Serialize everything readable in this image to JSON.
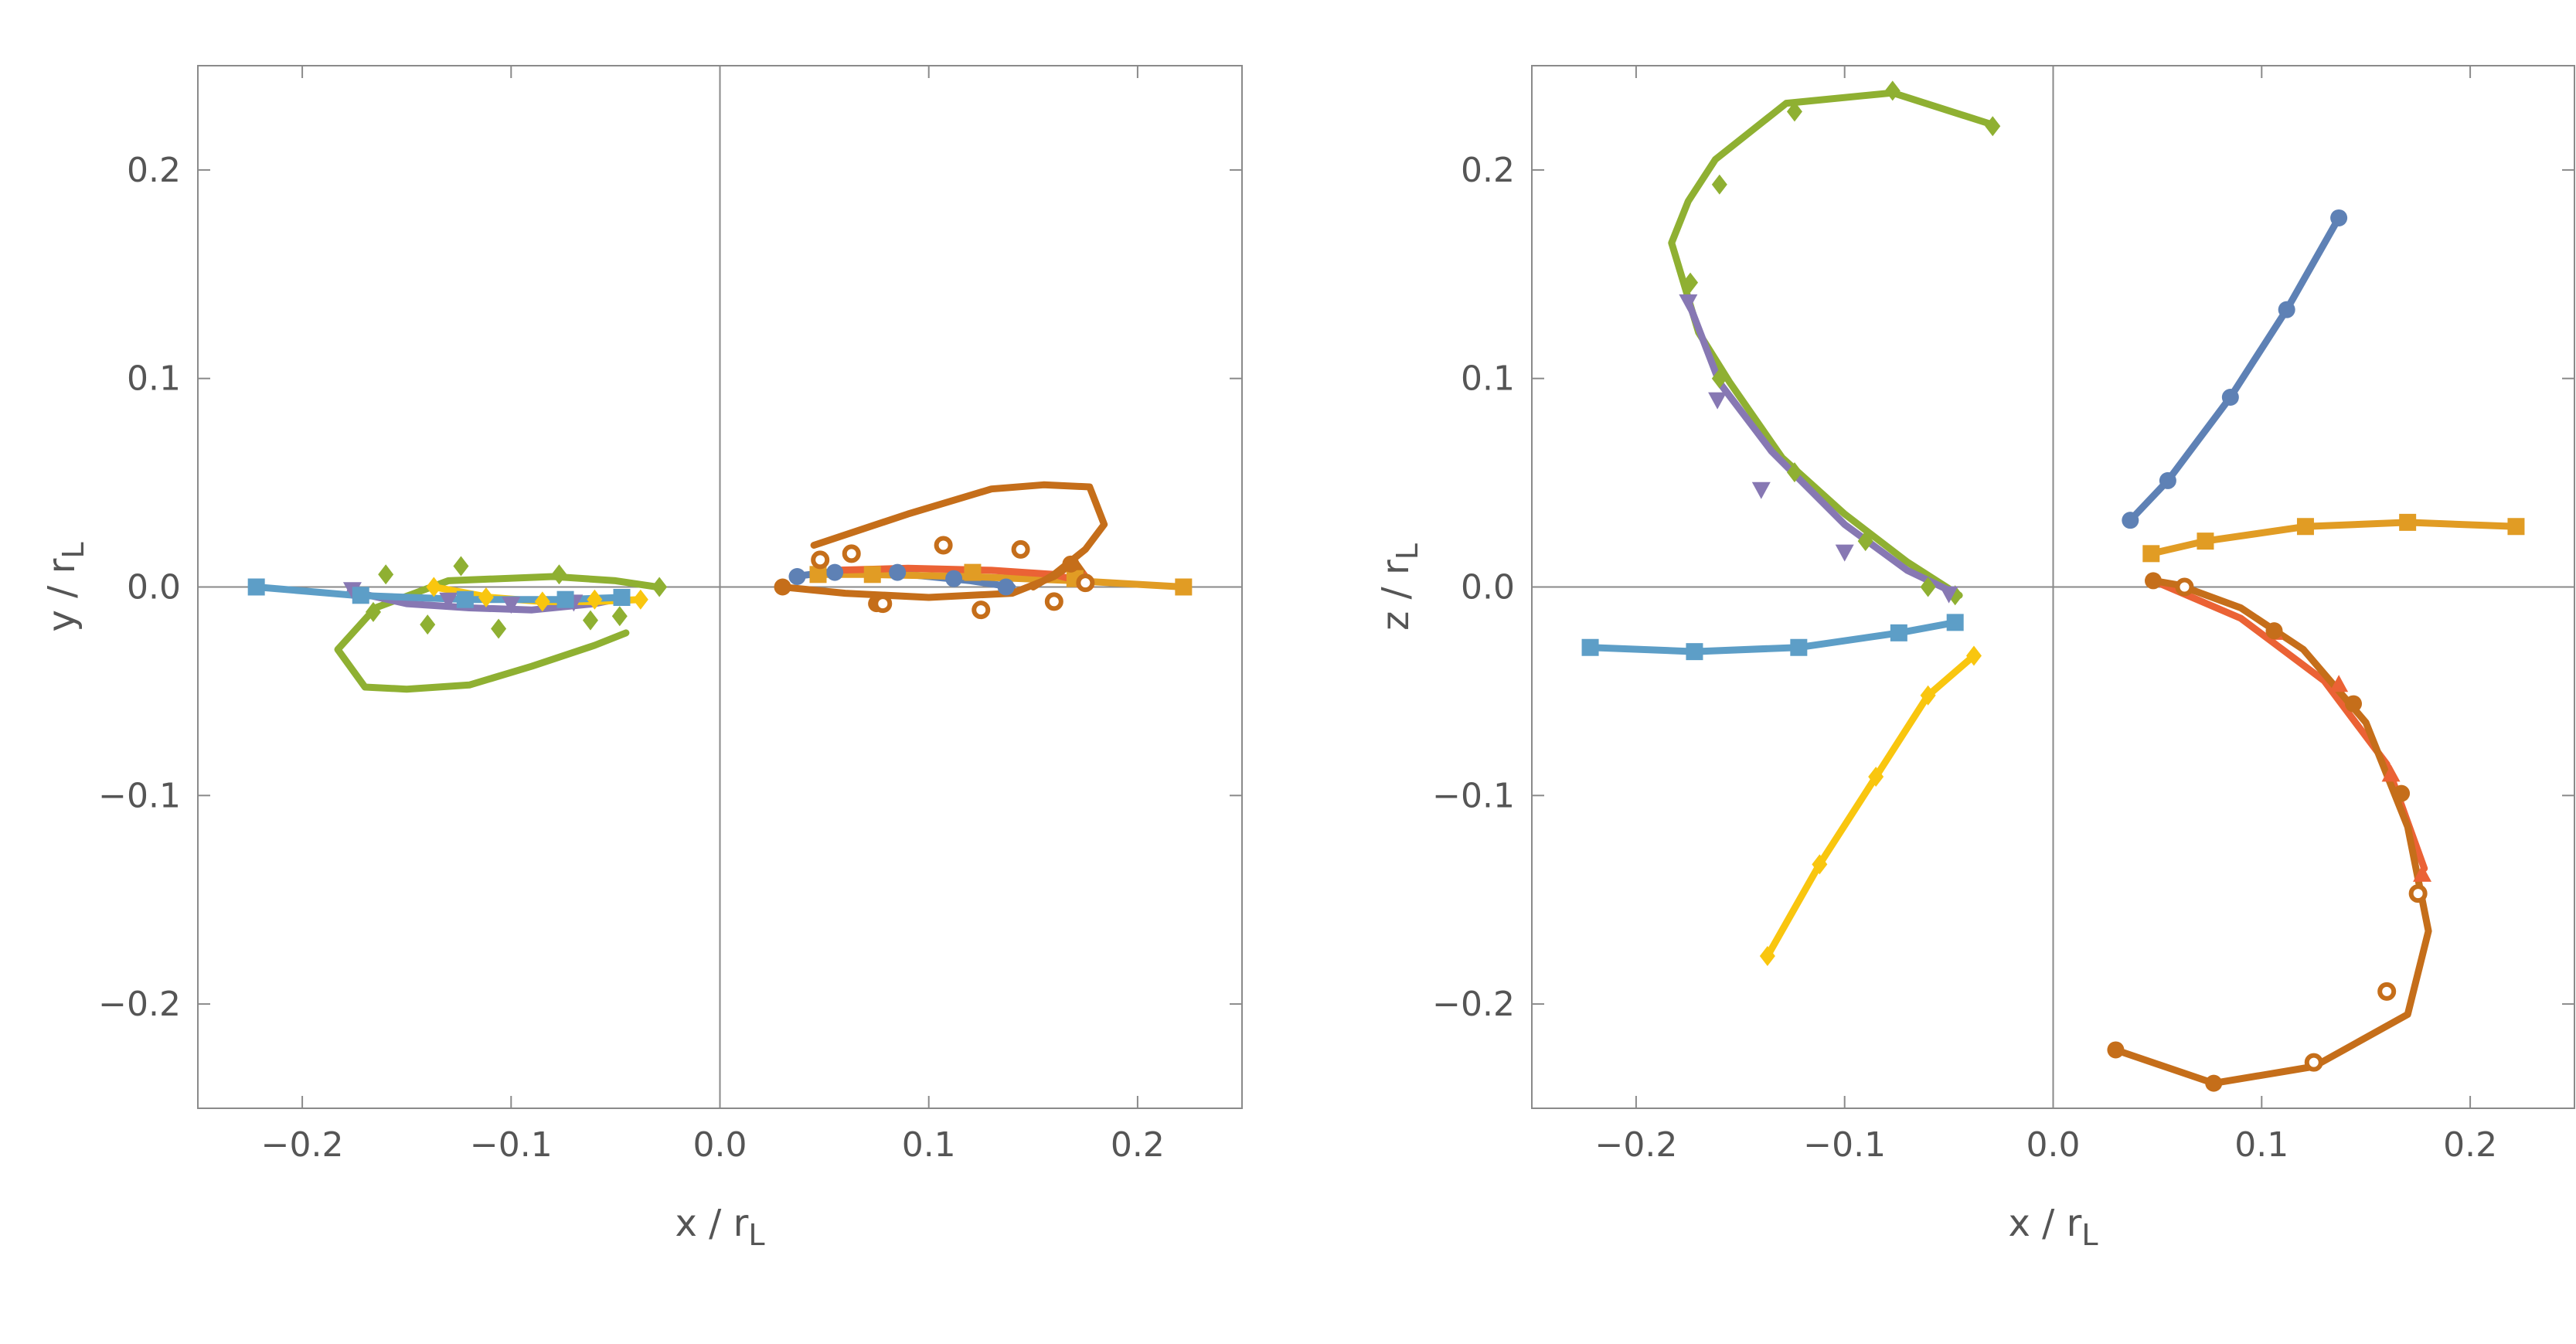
{
  "chart_data": [
    {
      "type": "line",
      "xlabel": "x / r",
      "xlabel_sub": "L",
      "ylabel": "y / r",
      "ylabel_sub": "L",
      "xlim": [
        -0.25,
        0.25
      ],
      "ylim": [
        -0.25,
        0.25
      ],
      "xticks": [
        -0.2,
        -0.1,
        0.0,
        0.1,
        0.2
      ],
      "yticks": [
        -0.2,
        -0.1,
        0.0,
        0.1,
        0.2
      ],
      "xtick_labels": [
        "−0.2",
        "−0.1",
        "0.0",
        "0.1",
        "0.2"
      ],
      "ytick_labels": [
        "−0.2",
        "−0.1",
        "0.0",
        "0.1",
        "0.2"
      ],
      "frame": true,
      "zero_lines": true,
      "series": [
        {
          "color": "#5E81B5",
          "marker": "circle",
          "line": [
            [
              0.035,
              0.005
            ],
            [
              0.06,
              0.008
            ],
            [
              0.09,
              0.006
            ],
            [
              0.12,
              0.003
            ],
            [
              0.14,
              0.0
            ]
          ],
          "points": [
            [
              0.037,
              0.005
            ],
            [
              0.055,
              0.007
            ],
            [
              0.085,
              0.007
            ],
            [
              0.112,
              0.004
            ],
            [
              0.137,
              0.0
            ]
          ]
        },
        {
          "color": "#E19C24",
          "marker": "square",
          "line": [
            [
              0.047,
              0.006
            ],
            [
              0.07,
              0.006
            ],
            [
              0.12,
              0.005
            ],
            [
              0.17,
              0.003
            ],
            [
              0.222,
              0.0
            ]
          ],
          "points": [
            [
              0.047,
              0.006
            ],
            [
              0.073,
              0.006
            ],
            [
              0.121,
              0.007
            ],
            [
              0.17,
              0.004
            ],
            [
              0.222,
              0.0
            ]
          ]
        },
        {
          "color": "#8FB032",
          "marker": "diamond",
          "line": [
            [
              -0.03,
              0.0
            ],
            [
              -0.05,
              0.003
            ],
            [
              -0.08,
              0.005
            ],
            [
              -0.13,
              0.003
            ],
            [
              -0.165,
              -0.01
            ],
            [
              -0.183,
              -0.03
            ],
            [
              -0.17,
              -0.048
            ],
            [
              -0.15,
              -0.049
            ],
            [
              -0.12,
              -0.047
            ],
            [
              -0.09,
              -0.038
            ],
            [
              -0.06,
              -0.028
            ],
            [
              -0.045,
              -0.022
            ]
          ],
          "points": [
            [
              -0.029,
              0.0
            ],
            [
              -0.048,
              -0.014
            ],
            [
              -0.062,
              -0.016
            ],
            [
              -0.077,
              0.006
            ],
            [
              -0.106,
              -0.02
            ],
            [
              -0.124,
              0.01
            ],
            [
              -0.14,
              -0.018
            ],
            [
              -0.16,
              0.006
            ],
            [
              -0.166,
              -0.012
            ]
          ]
        },
        {
          "color": "#EB6235",
          "marker": "triangle",
          "line": [
            [
              0.055,
              0.008
            ],
            [
              0.09,
              0.009
            ],
            [
              0.13,
              0.008
            ],
            [
              0.16,
              0.006
            ],
            [
              0.175,
              0.002
            ]
          ],
          "points": [
            [
              0.175,
              0.003
            ]
          ]
        },
        {
          "color": "#8778B3",
          "marker": "triangle-down",
          "line": [
            [
              -0.177,
              -0.002
            ],
            [
              -0.15,
              -0.008
            ],
            [
              -0.12,
              -0.01
            ],
            [
              -0.09,
              -0.011
            ],
            [
              -0.06,
              -0.008
            ],
            [
              -0.045,
              -0.005
            ]
          ],
          "points": [
            [
              -0.176,
              -0.001
            ],
            [
              -0.13,
              -0.006
            ],
            [
              -0.1,
              -0.008
            ],
            [
              -0.07,
              -0.007
            ]
          ]
        },
        {
          "color": "#C56E1A",
          "marker": "circle",
          "line": [
            [
              0.03,
              0.0
            ],
            [
              0.06,
              -0.003
            ],
            [
              0.1,
              -0.005
            ],
            [
              0.14,
              -0.003
            ],
            [
              0.16,
              0.005
            ],
            [
              0.17,
              0.012
            ],
            [
              0.175,
              0.005
            ]
          ],
          "points": [
            [
              0.03,
              0.0
            ],
            [
              0.075,
              -0.008
            ],
            [
              0.125,
              -0.011
            ],
            [
              0.168,
              0.011
            ]
          ]
        },
        {
          "color": "#C56E1A",
          "marker": "open-circle",
          "line": [
            [
              0.045,
              0.02
            ],
            [
              0.09,
              0.035
            ],
            [
              0.13,
              0.047
            ],
            [
              0.155,
              0.049
            ],
            [
              0.177,
              0.048
            ],
            [
              0.184,
              0.03
            ],
            [
              0.175,
              0.018
            ],
            [
              0.16,
              0.006
            ],
            [
              0.15,
              0.0
            ]
          ],
          "points": [
            [
              0.048,
              0.013
            ],
            [
              0.063,
              0.016
            ],
            [
              0.107,
              0.02
            ],
            [
              0.144,
              0.018
            ],
            [
              0.16,
              -0.007
            ],
            [
              0.175,
              0.002
            ],
            [
              0.125,
              -0.011
            ],
            [
              0.078,
              -0.008
            ]
          ]
        },
        {
          "color": "#F9C60F",
          "marker": "diamond",
          "line": [
            [
              -0.137,
              0.0
            ],
            [
              -0.11,
              -0.005
            ],
            [
              -0.085,
              -0.007
            ],
            [
              -0.06,
              -0.007
            ],
            [
              -0.038,
              -0.006
            ]
          ],
          "points": [
            [
              -0.137,
              0.0
            ],
            [
              -0.112,
              -0.005
            ],
            [
              -0.085,
              -0.007
            ],
            [
              -0.06,
              -0.006
            ],
            [
              -0.038,
              -0.006
            ]
          ]
        },
        {
          "color": "#5D9EC7",
          "marker": "square",
          "line": [
            [
              -0.222,
              0.0
            ],
            [
              -0.175,
              -0.004
            ],
            [
              -0.12,
              -0.006
            ],
            [
              -0.075,
              -0.006
            ],
            [
              -0.047,
              -0.005
            ]
          ],
          "points": [
            [
              -0.222,
              0.0
            ],
            [
              -0.172,
              -0.004
            ],
            [
              -0.122,
              -0.006
            ],
            [
              -0.074,
              -0.006
            ],
            [
              -0.047,
              -0.005
            ]
          ]
        }
      ]
    },
    {
      "type": "line",
      "xlabel": "x / r",
      "xlabel_sub": "L",
      "ylabel": "z / r",
      "ylabel_sub": "L",
      "xlim": [
        -0.25,
        0.25
      ],
      "ylim": [
        -0.25,
        0.25
      ],
      "xticks": [
        -0.2,
        -0.1,
        0.0,
        0.1,
        0.2
      ],
      "yticks": [
        -0.2,
        -0.1,
        0.0,
        0.1,
        0.2
      ],
      "xtick_labels": [
        "−0.2",
        "−0.1",
        "0.0",
        "0.1",
        "0.2"
      ],
      "ytick_labels": [
        "−0.2",
        "−0.1",
        "0.0",
        "0.1",
        "0.2"
      ],
      "frame": true,
      "zero_lines": true,
      "series": [
        {
          "color": "#5E81B5",
          "marker": "circle",
          "line": [
            [
              0.037,
              0.032
            ],
            [
              0.055,
              0.051
            ],
            [
              0.085,
              0.091
            ],
            [
              0.112,
              0.133
            ],
            [
              0.137,
              0.177
            ]
          ],
          "points": [
            [
              0.037,
              0.032
            ],
            [
              0.055,
              0.051
            ],
            [
              0.085,
              0.091
            ],
            [
              0.112,
              0.133
            ],
            [
              0.137,
              0.177
            ]
          ]
        },
        {
          "color": "#E19C24",
          "marker": "square",
          "line": [
            [
              0.047,
              0.016
            ],
            [
              0.073,
              0.022
            ],
            [
              0.121,
              0.029
            ],
            [
              0.17,
              0.031
            ],
            [
              0.222,
              0.029
            ]
          ],
          "points": [
            [
              0.047,
              0.016
            ],
            [
              0.073,
              0.022
            ],
            [
              0.121,
              0.029
            ],
            [
              0.17,
              0.031
            ],
            [
              0.222,
              0.029
            ]
          ]
        },
        {
          "color": "#8FB032",
          "marker": "diamond",
          "line": [
            [
              -0.045,
              -0.004
            ],
            [
              -0.07,
              0.012
            ],
            [
              -0.1,
              0.035
            ],
            [
              -0.13,
              0.062
            ],
            [
              -0.155,
              0.098
            ],
            [
              -0.17,
              0.122
            ],
            [
              -0.183,
              0.165
            ],
            [
              -0.175,
              0.185
            ],
            [
              -0.162,
              0.205
            ],
            [
              -0.128,
              0.232
            ],
            [
              -0.077,
              0.237
            ],
            [
              -0.03,
              0.222
            ]
          ],
          "points": [
            [
              -0.047,
              -0.004
            ],
            [
              -0.06,
              0.0
            ],
            [
              -0.09,
              0.022
            ],
            [
              -0.124,
              0.055
            ],
            [
              -0.16,
              0.1
            ],
            [
              -0.174,
              0.146
            ],
            [
              -0.16,
              0.193
            ],
            [
              -0.124,
              0.228
            ],
            [
              -0.077,
              0.238
            ],
            [
              -0.029,
              0.221
            ]
          ]
        },
        {
          "color": "#EB6235",
          "marker": "triangle",
          "line": [
            [
              0.048,
              0.003
            ],
            [
              0.09,
              -0.015
            ],
            [
              0.13,
              -0.045
            ],
            [
              0.16,
              -0.085
            ],
            [
              0.178,
              -0.135
            ]
          ],
          "points": [
            [
              0.106,
              -0.022
            ],
            [
              0.137,
              -0.047
            ],
            [
              0.162,
              -0.09
            ],
            [
              0.177,
              -0.138
            ]
          ]
        },
        {
          "color": "#8778B3",
          "marker": "triangle-down",
          "line": [
            [
              -0.047,
              -0.003
            ],
            [
              -0.07,
              0.008
            ],
            [
              -0.1,
              0.03
            ],
            [
              -0.135,
              0.065
            ],
            [
              -0.16,
              0.098
            ],
            [
              -0.175,
              0.137
            ]
          ],
          "points": [
            [
              -0.05,
              -0.003
            ],
            [
              -0.1,
              0.017
            ],
            [
              -0.14,
              0.047
            ],
            [
              -0.161,
              0.09
            ],
            [
              -0.175,
              0.137
            ]
          ]
        },
        {
          "color": "#C56E1A",
          "marker": "circle",
          "line": [
            [
              0.048,
              0.003
            ],
            [
              0.06,
              0.001
            ],
            [
              0.09,
              -0.01
            ],
            [
              0.12,
              -0.03
            ],
            [
              0.15,
              -0.065
            ],
            [
              0.17,
              -0.115
            ],
            [
              0.18,
              -0.165
            ],
            [
              0.17,
              -0.205
            ],
            [
              0.125,
              -0.23
            ],
            [
              0.077,
              -0.238
            ],
            [
              0.03,
              -0.222
            ]
          ],
          "points": [
            [
              0.048,
              0.003
            ],
            [
              0.106,
              -0.021
            ],
            [
              0.144,
              -0.056
            ],
            [
              0.167,
              -0.099
            ],
            [
              0.077,
              -0.238
            ],
            [
              0.03,
              -0.222
            ]
          ]
        },
        {
          "color": "#C56E1A",
          "marker": "open-circle",
          "line": [],
          "points": [
            [
              0.063,
              0.0
            ],
            [
              0.175,
              -0.147
            ],
            [
              0.16,
              -0.194
            ],
            [
              0.125,
              -0.228
            ]
          ]
        },
        {
          "color": "#F9C60F",
          "marker": "diamond",
          "line": [
            [
              -0.038,
              -0.033
            ],
            [
              -0.06,
              -0.052
            ],
            [
              -0.085,
              -0.091
            ],
            [
              -0.112,
              -0.133
            ],
            [
              -0.137,
              -0.177
            ]
          ],
          "points": [
            [
              -0.038,
              -0.033
            ],
            [
              -0.06,
              -0.052
            ],
            [
              -0.085,
              -0.091
            ],
            [
              -0.112,
              -0.133
            ],
            [
              -0.137,
              -0.177
            ]
          ]
        },
        {
          "color": "#5D9EC7",
          "marker": "square",
          "line": [
            [
              -0.222,
              -0.029
            ],
            [
              -0.172,
              -0.031
            ],
            [
              -0.122,
              -0.029
            ],
            [
              -0.074,
              -0.022
            ],
            [
              -0.047,
              -0.017
            ]
          ],
          "points": [
            [
              -0.222,
              -0.029
            ],
            [
              -0.172,
              -0.031
            ],
            [
              -0.122,
              -0.029
            ],
            [
              -0.074,
              -0.022
            ],
            [
              -0.047,
              -0.017
            ]
          ]
        }
      ]
    }
  ]
}
